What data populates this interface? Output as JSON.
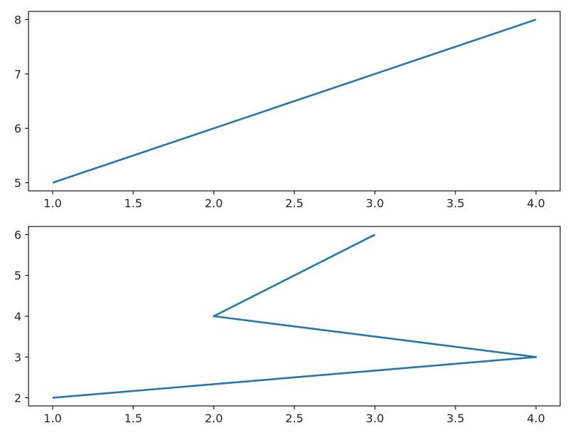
{
  "chart_data": [
    {
      "type": "line",
      "title": "",
      "xlabel": "",
      "ylabel": "",
      "xlim": [
        0.85,
        4.15
      ],
      "ylim": [
        4.85,
        8.15
      ],
      "xticks": [
        1.0,
        1.5,
        2.0,
        2.5,
        3.0,
        3.5,
        4.0
      ],
      "xtick_labels": [
        "1.0",
        "1.5",
        "2.0",
        "2.5",
        "3.0",
        "3.5",
        "4.0"
      ],
      "yticks": [
        5,
        6,
        7,
        8
      ],
      "ytick_labels": [
        "5",
        "6",
        "7",
        "8"
      ],
      "grid": false,
      "series": [
        {
          "x": [
            1,
            2,
            3,
            4
          ],
          "y": [
            5,
            6,
            7,
            8
          ],
          "color": "#1f77b4"
        }
      ]
    },
    {
      "type": "line",
      "title": "",
      "xlabel": "",
      "ylabel": "",
      "xlim": [
        0.85,
        4.15
      ],
      "ylim": [
        1.8,
        6.2
      ],
      "xticks": [
        1.0,
        1.5,
        2.0,
        2.5,
        3.0,
        3.5,
        4.0
      ],
      "xtick_labels": [
        "1.0",
        "1.5",
        "2.0",
        "2.5",
        "3.0",
        "3.5",
        "4.0"
      ],
      "yticks": [
        2,
        3,
        4,
        5,
        6
      ],
      "ytick_labels": [
        "2",
        "3",
        "4",
        "5",
        "6"
      ],
      "grid": false,
      "series": [
        {
          "x": [
            1,
            4,
            2,
            3
          ],
          "y": [
            2,
            3,
            4,
            6
          ],
          "color": "#1f77b4"
        }
      ]
    }
  ]
}
